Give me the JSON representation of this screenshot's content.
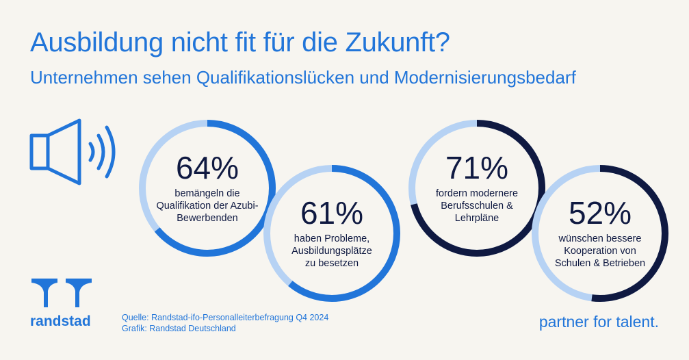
{
  "title": "Ausbildung nicht fit für die Zukunft?",
  "subtitle": "Unternehmen sehen Qualifikationslücken und Modernisierungsbedarf",
  "icons": {
    "speaker": "speaker-icon",
    "logo": "randstad-logo-icon"
  },
  "colors": {
    "accent": "#2175d9",
    "dark": "#0f1941",
    "track": "#b6d2f4",
    "background": "#f7f5f0"
  },
  "chart_data": {
    "type": "donut",
    "items": [
      {
        "value": 64,
        "label": "64%",
        "description": "bemängeln die\nQualifikation der Azubi-\nBewerbenden",
        "color": "#2175d9"
      },
      {
        "value": 61,
        "label": "61%",
        "description": "haben Probleme,\nAusbildungsplätze\nzu besetzen",
        "color": "#2175d9"
      },
      {
        "value": 71,
        "label": "71%",
        "description": "fordern modernere\nBerufsschulen &\nLehrpläne",
        "color": "#0f1941"
      },
      {
        "value": 52,
        "label": "52%",
        "description": "wünschen bessere\nKooperation von\nSchulen & Betrieben",
        "color": "#0f1941"
      }
    ]
  },
  "footer": {
    "brand": "randstad",
    "source_line1": "Quelle: Randstad-ifo-Personalleiterbefragung Q4 2024",
    "source_line2": "Grafik: Randstad Deutschland",
    "tagline": "partner for talent."
  }
}
